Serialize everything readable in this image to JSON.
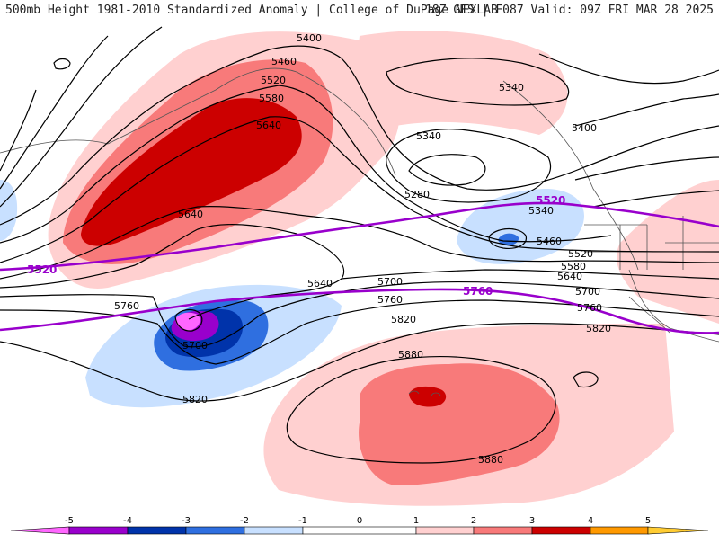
{
  "header": {
    "title_left": "500mb Height 1981-2010 Standardized Anomaly | College of DuPage NEXLAB",
    "title_right": "18Z GFS | F087 Valid: 09Z FRI MAR 28 2025"
  },
  "colors": {
    "anomaly_minus5": "#ff66ff",
    "anomaly_minus4": "#9900cc",
    "anomaly_minus3": "#0033aa",
    "anomaly_minus2": "#2f6fe0",
    "anomaly_minus1": "#c8e0ff",
    "anomaly_plus1": "#ffd0d0",
    "anomaly_plus2": "#f87a7a",
    "anomaly_plus3": "#cc0000",
    "anomaly_plus4": "#ff9900",
    "anomaly_plus5": "#ffcc33",
    "climo_contour": "#9900cc",
    "height_contour": "#000000"
  },
  "map": {
    "height_labels": [
      "5400",
      "5460",
      "5520",
      "5580",
      "5640",
      "5340",
      "5340",
      "5400",
      "5280",
      "5340",
      "5460",
      "5520",
      "5580",
      "5640",
      "5700",
      "5760",
      "5820",
      "5640",
      "5640",
      "5700",
      "5760",
      "5820",
      "5700",
      "5760",
      "5820",
      "5880",
      "5880"
    ],
    "climo_labels": [
      "5520",
      "5520",
      "5760"
    ]
  },
  "colorbar": {
    "tick_labels": [
      "-5",
      "-4",
      "-3",
      "-2",
      "-1",
      "0",
      "1",
      "2",
      "3",
      "4",
      "5"
    ]
  }
}
